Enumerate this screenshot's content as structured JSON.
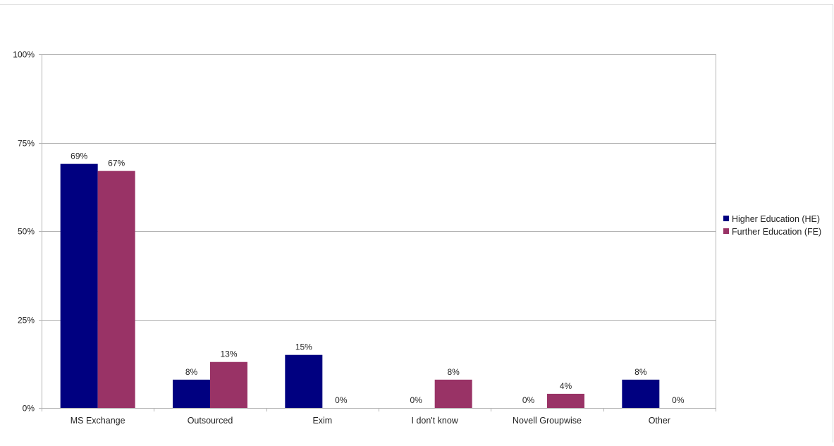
{
  "chart_data": {
    "type": "bar",
    "categories": [
      "MS Exchange",
      "Outsourced",
      "Exim",
      "I don't know",
      "Novell Groupwise",
      "Other"
    ],
    "series": [
      {
        "name": "Higher Education (HE)",
        "color": "#000080",
        "values": [
          69,
          8,
          15,
          0,
          0,
          8
        ],
        "labels": [
          "69%",
          "8%",
          "15%",
          "0%",
          "0%",
          "8%"
        ]
      },
      {
        "name": "Further Education (FE)",
        "color": "#993366",
        "values": [
          67,
          13,
          0,
          8,
          4,
          0
        ],
        "labels": [
          "67%",
          "13%",
          "0%",
          "8%",
          "4%",
          "0%"
        ]
      }
    ],
    "ylim": [
      0,
      100
    ],
    "yticks": [
      0,
      25,
      50,
      75,
      100
    ],
    "ytick_labels": [
      "0%",
      "25%",
      "50%",
      "75%",
      "100%"
    ],
    "grid": true,
    "legend": "right",
    "title": "",
    "xlabel": "",
    "ylabel": ""
  }
}
